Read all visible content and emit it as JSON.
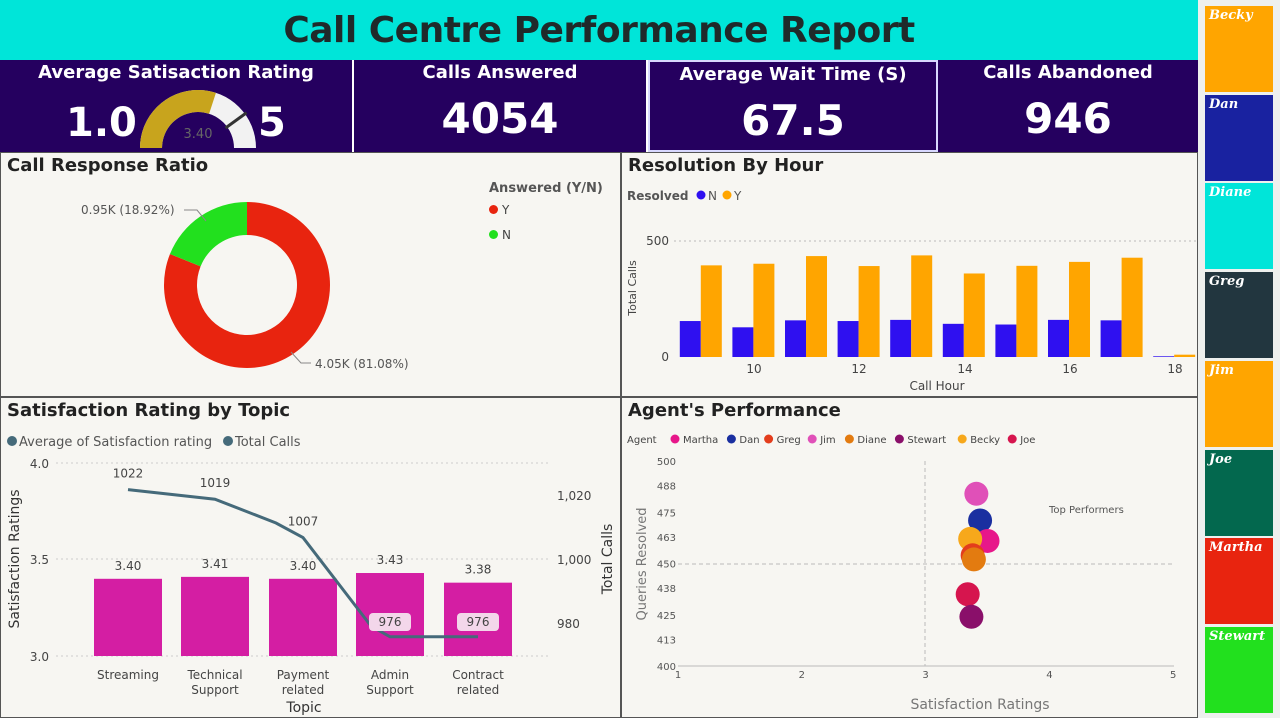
{
  "header": {
    "title": "Call Centre Performance Report"
  },
  "kpis": {
    "satisfaction": {
      "label": "Average Satisaction Rating",
      "min": "1.0",
      "max": "5",
      "value": "3.40",
      "value_num": 3.4
    },
    "answered": {
      "label": "Calls Answered",
      "value": "4054"
    },
    "wait": {
      "label": "Average Wait Time (S)",
      "value": "67.5"
    },
    "abandoned": {
      "label": "Calls Abandoned",
      "value": "946"
    }
  },
  "response_ratio": {
    "title": "Call Response Ratio",
    "legend_title": "Answered (Y/N)",
    "legend": [
      {
        "label": "Y",
        "color": "#e8240f"
      },
      {
        "label": "N",
        "color": "#22e01e"
      }
    ],
    "label_y": "4.05K (81.08%)",
    "label_n": "0.95K (18.92%)"
  },
  "resolution": {
    "title": "Resolution By Hour",
    "legend_title": "Resolved",
    "legend": [
      {
        "label": "N",
        "color": "#2f10f0"
      },
      {
        "label": "Y",
        "color": "#ffa500"
      }
    ],
    "xlabel": "Call Hour",
    "ylabel": "Total Calls",
    "yticks": [
      "0",
      "500"
    ],
    "xticks": [
      "10",
      "12",
      "14",
      "16",
      "18"
    ]
  },
  "topic": {
    "title": "Satisfaction Rating by Topic",
    "legend": [
      "Average of Satisfaction rating",
      "Total Calls"
    ],
    "xlabel": "Topic",
    "ylabel_left": "Satisfaction Ratings",
    "ylabel_right": "Total Calls",
    "yticks_left": [
      "4.0",
      "3.5",
      "3.0"
    ],
    "yticks_right": [
      "1,020",
      "1,000",
      "980"
    ],
    "categories": [
      "Streaming",
      "Technical Support",
      "Payment related",
      "Admin Support",
      "Contract related"
    ],
    "cat_lines": [
      [
        "Streaming"
      ],
      [
        "Technical",
        "Support"
      ],
      [
        "Payment",
        "related"
      ],
      [
        "Admin",
        "Support"
      ],
      [
        "Contract",
        "related"
      ]
    ],
    "rating_labels": [
      "3.40",
      "3.41",
      "3.40",
      "3.43",
      "3.38"
    ],
    "call_labels": [
      "1022",
      "1019",
      "1007",
      "976",
      "976"
    ]
  },
  "agents": {
    "title": "Agent's Performance",
    "legend_title": "Agent",
    "legend": [
      {
        "name": "Martha",
        "color": "#e7178a"
      },
      {
        "name": "Dan",
        "color": "#1a2fa0"
      },
      {
        "name": "Greg",
        "color": "#e33d1c"
      },
      {
        "name": "Jim",
        "color": "#e050b8"
      },
      {
        "name": "Diane",
        "color": "#e37b10"
      },
      {
        "name": "Stewart",
        "color": "#8a0f6a"
      },
      {
        "name": "Becky",
        "color": "#f7a81b"
      },
      {
        "name": "Joe",
        "color": "#d6154e"
      }
    ],
    "xlabel": "Satisfaction Ratings",
    "ylabel": "Queries Resolved",
    "xticks": [
      "1",
      "2",
      "3",
      "4",
      "5"
    ],
    "yticks": [
      "500",
      "488",
      "475",
      "463",
      "450",
      "438",
      "425",
      "413",
      "400"
    ],
    "annotation": "Top Performers"
  },
  "sidebar": [
    {
      "name": "Becky",
      "color": "#ffa500"
    },
    {
      "name": "Dan",
      "color": "#1922a0"
    },
    {
      "name": "Diane",
      "color": "#00e5d9"
    },
    {
      "name": "Greg",
      "color": "#22363f"
    },
    {
      "name": "Jim",
      "color": "#ffa500"
    },
    {
      "name": "Joe",
      "color": "#03684e"
    },
    {
      "name": "Martha",
      "color": "#e8240f"
    },
    {
      "name": "Stewart",
      "color": "#22e01e"
    }
  ],
  "chart_data": [
    {
      "type": "pie",
      "title": "Call Response Ratio",
      "categories": [
        "Y",
        "N"
      ],
      "values": [
        4054,
        946
      ],
      "percent": [
        81.08,
        18.92
      ]
    },
    {
      "type": "bar",
      "title": "Resolution By Hour",
      "xlabel": "Call Hour",
      "ylabel": "Total Calls",
      "categories": [
        9,
        10,
        11,
        12,
        13,
        14,
        15,
        16,
        17,
        18
      ],
      "ylim": [
        0,
        600
      ],
      "series": [
        {
          "name": "N",
          "values": [
            155,
            128,
            158,
            155,
            160,
            143,
            140,
            160,
            158,
            3
          ]
        },
        {
          "name": "Y",
          "values": [
            395,
            402,
            435,
            392,
            438,
            360,
            393,
            410,
            428,
            10
          ]
        }
      ]
    },
    {
      "type": "bar",
      "title": "Satisfaction Rating by Topic",
      "categories": [
        "Streaming",
        "Technical Support",
        "Payment related",
        "Admin Support",
        "Contract related"
      ],
      "series": [
        {
          "name": "Average of Satisfaction rating",
          "values": [
            3.4,
            3.41,
            3.4,
            3.43,
            3.38
          ]
        },
        {
          "name": "Total Calls",
          "values": [
            1022,
            1019,
            1007,
            976,
            976
          ]
        }
      ],
      "ylim": [
        3.0,
        4.0
      ],
      "y2lim": [
        970,
        1030
      ]
    },
    {
      "type": "scatter",
      "title": "Agent's Performance",
      "xlabel": "Satisfaction Ratings",
      "ylabel": "Queries Resolved",
      "xlim": [
        1,
        5
      ],
      "ylim": [
        400,
        500
      ],
      "series": [
        {
          "name": "Jim",
          "x": 3.41,
          "y": 484
        },
        {
          "name": "Dan",
          "x": 3.44,
          "y": 471
        },
        {
          "name": "Martha",
          "x": 3.5,
          "y": 461
        },
        {
          "name": "Becky",
          "x": 3.36,
          "y": 462
        },
        {
          "name": "Greg",
          "x": 3.38,
          "y": 454
        },
        {
          "name": "Diane",
          "x": 3.39,
          "y": 452
        },
        {
          "name": "Joe",
          "x": 3.34,
          "y": 435
        },
        {
          "name": "Stewart",
          "x": 3.37,
          "y": 424
        }
      ]
    }
  ]
}
